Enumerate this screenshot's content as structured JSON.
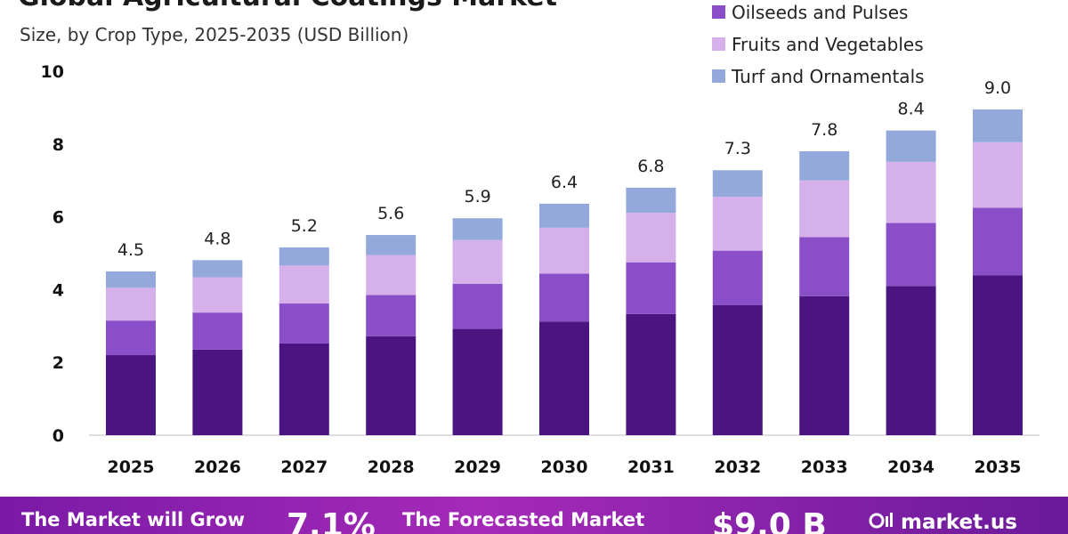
{
  "chart_data": {
    "type": "bar",
    "stacked": true,
    "title": "Global Agricultural Coatings Market",
    "subtitle": "Size, by Crop Type, 2025-2035 (USD Billion)",
    "categories": [
      "2025",
      "2026",
      "2027",
      "2028",
      "2029",
      "2030",
      "2031",
      "2032",
      "2033",
      "2034",
      "2035"
    ],
    "totals": [
      "4.5",
      "4.8",
      "5.2",
      "5.6",
      "5.9",
      "6.4",
      "6.8",
      "7.3",
      "7.8",
      "8.4",
      "9.0"
    ],
    "yticks": [
      "0",
      "2",
      "4",
      "6",
      "8",
      "10"
    ],
    "ylim": [
      0,
      10
    ],
    "legend_position": "top-right",
    "grid": false,
    "series": [
      {
        "name": "",
        "color": "#4a1580",
        "values": [
          2.2,
          2.35,
          2.52,
          2.72,
          2.92,
          3.12,
          3.33,
          3.57,
          3.82,
          4.1,
          4.39
        ]
      },
      {
        "name": "Oilseeds and Pulses",
        "color": "#8a4fc8",
        "values": [
          0.95,
          1.02,
          1.1,
          1.13,
          1.24,
          1.32,
          1.42,
          1.5,
          1.62,
          1.73,
          1.86
        ]
      },
      {
        "name": "Fruits and Vegetables",
        "color": "#d6b0ea",
        "values": [
          0.9,
          0.97,
          1.04,
          1.1,
          1.2,
          1.26,
          1.36,
          1.48,
          1.56,
          1.68,
          1.8
        ]
      },
      {
        "name": "Turf and Ornamentals",
        "color": "#93a9dc",
        "values": [
          0.45,
          0.47,
          0.5,
          0.55,
          0.6,
          0.66,
          0.69,
          0.73,
          0.8,
          0.86,
          0.9
        ]
      }
    ]
  },
  "footer": {
    "text1": "The Market will Grow",
    "cagr": "7.1%",
    "text2": "The Forecasted Market",
    "value": "$9.0 B",
    "brand": "market.us"
  }
}
